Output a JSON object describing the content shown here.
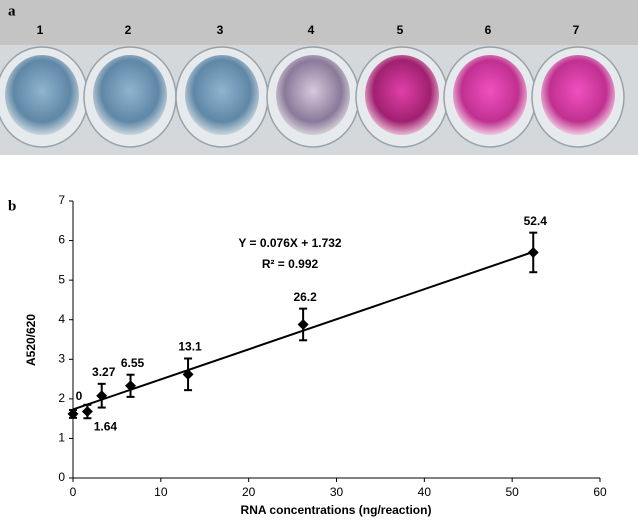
{
  "panels": {
    "a": "a",
    "b": "b"
  },
  "wells": [
    "1",
    "2",
    "3",
    "4",
    "5",
    "6",
    "7"
  ],
  "chart_data": {
    "type": "scatter",
    "x": [
      0,
      1.64,
      3.27,
      6.55,
      13.1,
      26.2,
      52.4
    ],
    "values": [
      1.62,
      1.68,
      2.08,
      2.33,
      2.62,
      3.88,
      5.7
    ],
    "errors": [
      0.1,
      0.17,
      0.3,
      0.28,
      0.4,
      0.4,
      0.5
    ],
    "color": "#000000",
    "trendline": {
      "slope": 0.076,
      "intercept": 1.732
    },
    "annotations": [
      "Y = 0.076X + 1.732",
      "R² = 0.992"
    ],
    "xlabel": "RNA concentrations (ng/reaction)",
    "ylabel": "A520/620",
    "xlim": [
      0,
      60
    ],
    "ylim": [
      0,
      7
    ],
    "xticks": [
      0,
      10,
      20,
      30,
      40,
      50,
      60
    ],
    "yticks": [
      0,
      1,
      2,
      3,
      4,
      5,
      6,
      7
    ],
    "grid": false
  }
}
